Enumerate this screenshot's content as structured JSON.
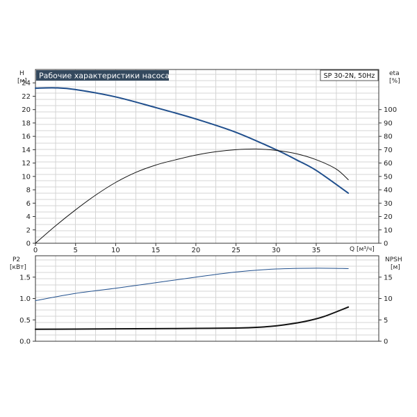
{
  "title": "Рабочие характеристики насоса",
  "model": "SP 30-2N, 50Hz",
  "colors": {
    "blue_curve": "#1f4e8c",
    "black_curve": "#111111",
    "title_bg": "#34495e"
  },
  "chart_data": [
    {
      "type": "line",
      "name": "top",
      "x_label": "Q [м³/ч]",
      "y_left_label": [
        "H",
        "[м]"
      ],
      "y_right_label": [
        "eta",
        "[%]"
      ],
      "xlim": [
        0,
        40
      ],
      "x_ticks": [
        0,
        5,
        10,
        15,
        20,
        25,
        30,
        35
      ],
      "ylim_left": [
        0,
        26
      ],
      "y_left_ticks": [
        0,
        2,
        4,
        6,
        8,
        10,
        12,
        14,
        16,
        18,
        20,
        22,
        24
      ],
      "ylim_right": [
        0,
        130
      ],
      "y_right_ticks": [
        0,
        10,
        20,
        30,
        40,
        50,
        60,
        70,
        80,
        90,
        100
      ],
      "grid": true,
      "series": [
        {
          "axis": "left",
          "color": "#1f4e8c",
          "width": 2,
          "x": [
            0,
            2.5,
            5,
            10,
            15,
            20,
            25,
            30,
            32.5,
            35,
            39
          ],
          "y": [
            23.2,
            23.25,
            23.0,
            21.9,
            20.3,
            18.6,
            16.6,
            14.0,
            12.5,
            10.9,
            7.5
          ]
        },
        {
          "axis": "right",
          "color": "#111111",
          "width": 1,
          "x": [
            0,
            2.5,
            5,
            7.5,
            10,
            12.5,
            15,
            17.5,
            20,
            22.5,
            25,
            27.5,
            30,
            32.5,
            35,
            37.5,
            39
          ],
          "y": [
            0,
            13,
            25,
            36,
            45.5,
            53,
            58.5,
            62.5,
            66,
            68.5,
            70,
            70.5,
            69.5,
            67,
            62.5,
            55.5,
            47.5
          ]
        }
      ]
    },
    {
      "type": "line",
      "name": "bottom",
      "y_left_label": [
        "P2",
        "[кВт]"
      ],
      "y_right_label": [
        "NPSH",
        "[м]"
      ],
      "xlim": [
        0,
        40
      ],
      "ylim_left": [
        0,
        2.0
      ],
      "y_left_ticks": [
        0.0,
        0.5,
        1.0,
        1.5
      ],
      "y_left_tick_labels": [
        "0.0",
        "0.5",
        "1.0",
        "1.5"
      ],
      "ylim_right": [
        0,
        20
      ],
      "y_right_ticks": [
        0,
        5,
        10,
        15
      ],
      "grid": true,
      "series": [
        {
          "axis": "left",
          "color": "#1f4e8c",
          "width": 1,
          "x": [
            0,
            5,
            10,
            15,
            20,
            25,
            30,
            35,
            39
          ],
          "y": [
            0.95,
            1.12,
            1.24,
            1.37,
            1.5,
            1.62,
            1.69,
            1.71,
            1.7
          ]
        },
        {
          "axis": "right",
          "color": "#111111",
          "width": 2,
          "x": [
            0,
            5,
            10,
            15,
            20,
            25,
            28,
            30,
            32,
            34,
            36,
            39
          ],
          "y": [
            2.8,
            2.85,
            2.9,
            2.95,
            3.0,
            3.1,
            3.3,
            3.6,
            4.1,
            4.8,
            5.8,
            8.0
          ]
        }
      ]
    }
  ]
}
